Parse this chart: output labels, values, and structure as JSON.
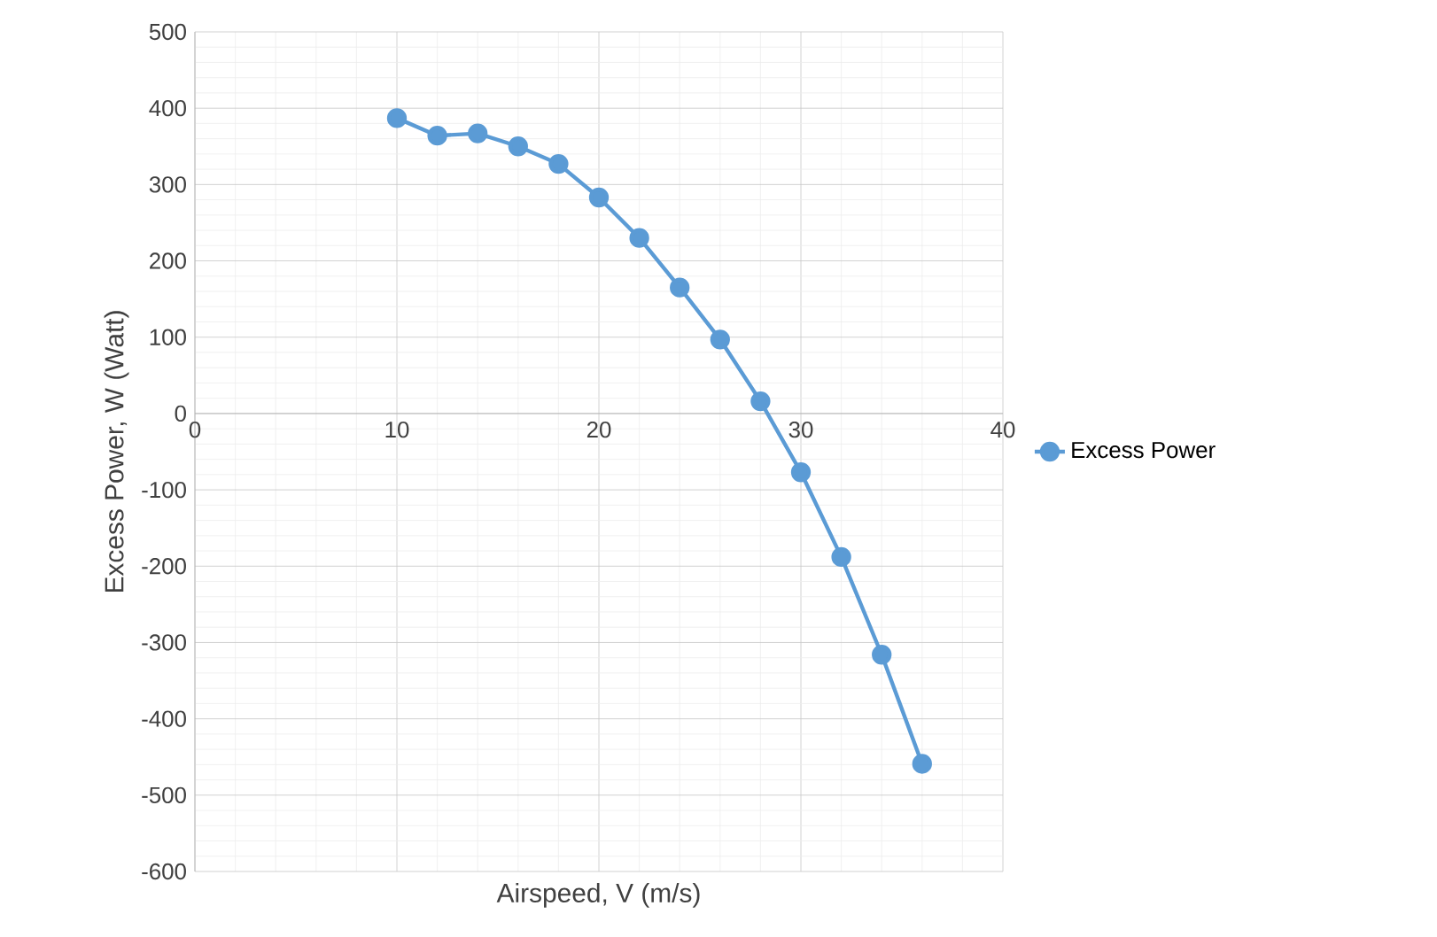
{
  "chart_data": {
    "type": "line",
    "xlabel": "Airspeed, V (m/s)",
    "ylabel": "Excess Power, W (Watt)",
    "x": [
      10,
      12,
      14,
      16,
      18,
      20,
      22,
      24,
      26,
      28,
      30,
      32,
      34,
      36
    ],
    "series": [
      {
        "name": "Excess Power",
        "color": "#5b9bd5",
        "values": [
          387,
          364,
          367,
          350,
          327,
          283,
          230,
          165,
          97,
          16,
          -77,
          -188,
          -316,
          -459
        ]
      }
    ],
    "xlim": [
      0,
      40
    ],
    "xticks": [
      0,
      10,
      20,
      30,
      40
    ],
    "ylim": [
      -600,
      500
    ],
    "yticks": [
      -600,
      -500,
      -400,
      -300,
      -200,
      -100,
      0,
      100,
      200,
      300,
      400,
      500
    ],
    "grid": true,
    "legend": "right",
    "marker": "circle",
    "line_style": "solid"
  }
}
